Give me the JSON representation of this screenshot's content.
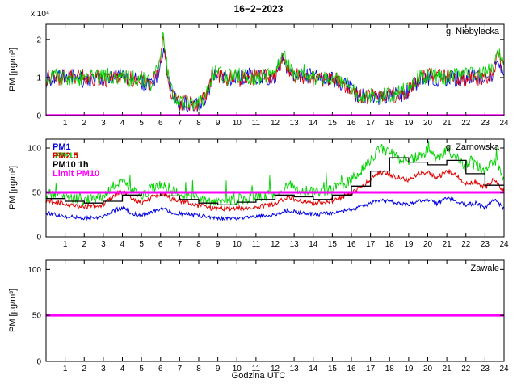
{
  "figure": {
    "title": "16−2−2023",
    "xlabel": "Godzina UTC"
  },
  "colors": {
    "pm1_blue": "#0000e0",
    "pm25_red": "#e00000",
    "pm10_green": "#00d200",
    "pm10_1h_black": "#000000",
    "limit_magenta": "#ff00ff"
  },
  "chart_data": [
    {
      "type": "line",
      "station": "g. Niebylecka",
      "ylabel": "PM [µg/m³]",
      "y_scale_label": "x 10⁴",
      "y_scale_factor": 10000,
      "xlim": [
        0,
        24
      ],
      "ylim": [
        0,
        2.4
      ],
      "xticks": [
        1,
        2,
        3,
        4,
        5,
        6,
        7,
        8,
        9,
        10,
        11,
        12,
        13,
        14,
        15,
        16,
        17,
        18,
        19,
        20,
        21,
        22,
        23,
        24
      ],
      "yticks": [
        0,
        1,
        2
      ],
      "grid": false,
      "series": [
        {
          "name": "PM1",
          "color": "#0000e0",
          "style": "noisy",
          "width": 0.8,
          "noise": 0.22,
          "seed": 7,
          "x": [
            0,
            0.5,
            1,
            2,
            3,
            4,
            5,
            5.5,
            5.9,
            6.15,
            6.3,
            6.6,
            7,
            7.5,
            8,
            8.4,
            8.7,
            9,
            9.5,
            10,
            11,
            12,
            12.4,
            12.6,
            13,
            13.5,
            14,
            15,
            15.7,
            16.2,
            16.6,
            17,
            17.5,
            18,
            18.5,
            19,
            19.5,
            20,
            21,
            22,
            23,
            23.4,
            23.7,
            24
          ],
          "y": [
            0.95,
            1.0,
            1.05,
            0.95,
            1.0,
            1.05,
            0.9,
            0.8,
            1.1,
            1.9,
            1.3,
            0.6,
            0.35,
            0.3,
            0.3,
            0.4,
            1.0,
            1.1,
            0.95,
            1.0,
            1.05,
            1.0,
            1.6,
            1.3,
            1.0,
            1.1,
            1.0,
            0.95,
            0.85,
            0.6,
            0.5,
            0.45,
            0.5,
            0.5,
            0.55,
            0.65,
            0.9,
            1.0,
            0.95,
            1.0,
            1.05,
            1.1,
            1.5,
            1.1
          ]
        },
        {
          "name": "PM2.5",
          "color": "#e00000",
          "style": "noisy",
          "width": 0.8,
          "noise": 0.22,
          "seed": 11,
          "x": [
            0,
            0.5,
            1,
            2,
            3,
            4,
            5,
            5.5,
            5.9,
            6.15,
            6.3,
            6.6,
            7,
            7.5,
            8,
            8.4,
            8.7,
            9,
            9.5,
            10,
            11,
            12,
            12.4,
            12.6,
            13,
            13.5,
            14,
            15,
            15.7,
            16.2,
            16.6,
            17,
            17.5,
            18,
            18.5,
            19,
            19.5,
            20,
            21,
            22,
            23,
            23.4,
            23.7,
            24
          ],
          "y": [
            1.0,
            0.95,
            1.0,
            1.05,
            0.95,
            1.0,
            0.95,
            0.85,
            1.2,
            2.0,
            1.2,
            0.55,
            0.35,
            0.3,
            0.32,
            0.45,
            1.05,
            1.05,
            1.0,
            0.95,
            1.0,
            1.05,
            1.5,
            1.25,
            1.05,
            1.0,
            0.95,
            1.0,
            0.8,
            0.55,
            0.5,
            0.5,
            0.45,
            0.55,
            0.5,
            0.7,
            0.95,
            1.05,
            1.0,
            0.95,
            1.0,
            1.15,
            1.6,
            1.2
          ]
        },
        {
          "name": "PM10",
          "color": "#00d200",
          "style": "noisy",
          "width": 0.8,
          "noise": 0.22,
          "seed": 13,
          "x": [
            0,
            0.5,
            1,
            2,
            3,
            4,
            5,
            5.5,
            5.9,
            6.15,
            6.3,
            6.6,
            7,
            7.5,
            8,
            8.4,
            8.7,
            9,
            9.5,
            10,
            11,
            12,
            12.4,
            12.6,
            13,
            13.5,
            14,
            15,
            15.7,
            16.2,
            16.6,
            17,
            17.5,
            18,
            18.5,
            19,
            19.5,
            20,
            21,
            22,
            23,
            23.4,
            23.7,
            24
          ],
          "y": [
            1.0,
            1.05,
            0.95,
            1.0,
            1.05,
            1.0,
            0.95,
            0.85,
            1.3,
            2.1,
            1.4,
            0.6,
            0.35,
            0.3,
            0.32,
            0.5,
            1.1,
            1.15,
            1.0,
            1.05,
            1.0,
            1.05,
            1.7,
            1.35,
            1.05,
            1.15,
            1.0,
            1.0,
            0.9,
            0.6,
            0.5,
            0.5,
            0.5,
            0.55,
            0.6,
            0.7,
            1.0,
            1.05,
            1.0,
            1.05,
            1.1,
            1.2,
            1.7,
            1.25
          ]
        }
      ],
      "limit": {
        "label": "Limit PM10",
        "value": 0.005,
        "color": "#ff00ff"
      }
    },
    {
      "type": "line",
      "station": "g. Zarnowska",
      "ylabel": "PM [µg/m³]",
      "xlim": [
        0,
        24
      ],
      "ylim": [
        0,
        110
      ],
      "xticks": [
        1,
        2,
        3,
        4,
        5,
        6,
        7,
        8,
        9,
        10,
        11,
        12,
        13,
        14,
        15,
        16,
        17,
        18,
        19,
        20,
        21,
        22,
        23,
        24
      ],
      "yticks": [
        0,
        50,
        100
      ],
      "grid": false,
      "legend": [
        {
          "label": "PM1",
          "color": "#0000e0",
          "row": 0,
          "dx": 0
        },
        {
          "label": "PM10",
          "color": "#00d200",
          "row": 1,
          "dx": 3
        },
        {
          "label": "PM2.5",
          "color": "#e00000",
          "row": 1,
          "dx": 0
        },
        {
          "label": "PM10 1h",
          "color": "#000000",
          "row": 2,
          "dx": 0
        },
        {
          "label": "Limit PM10",
          "color": "#ff00ff",
          "row": 3,
          "dx": 0
        }
      ],
      "series": [
        {
          "name": "PM10",
          "color": "#00d200",
          "style": "noisy",
          "width": 0.9,
          "noise": 6,
          "spike_chance": 0.05,
          "spike_amp": 20,
          "seed": 23,
          "x": [
            0,
            0.5,
            1,
            2,
            3,
            3.7,
            4.1,
            4.5,
            5,
            5.7,
            6.2,
            6.6,
            7,
            8,
            9,
            10,
            11,
            12,
            12.7,
            13.2,
            14,
            15,
            15.5,
            16,
            16.5,
            17,
            17.5,
            18,
            18.5,
            19,
            19.5,
            20,
            20.5,
            21,
            21.5,
            22,
            22.5,
            23,
            23.5,
            24
          ],
          "y": [
            49,
            47,
            45,
            42,
            45,
            61,
            64,
            52,
            47,
            56,
            59,
            52,
            49,
            44,
            40,
            42,
            44,
            48,
            59,
            54,
            50,
            53,
            58,
            64,
            74,
            86,
            100,
            95,
            88,
            85,
            92,
            96,
            87,
            98,
            90,
            79,
            82,
            73,
            89,
            64
          ]
        },
        {
          "name": "PM2.5",
          "color": "#e00000",
          "style": "noisy",
          "width": 1,
          "noise": 2.8,
          "seed": 22,
          "x": [
            0,
            0.5,
            1,
            2,
            3,
            3.7,
            4.1,
            4.5,
            5,
            5.7,
            6.2,
            6.6,
            7,
            8,
            9,
            10,
            11,
            12,
            12.7,
            13.2,
            14,
            15,
            15.5,
            16,
            16.5,
            17,
            17.5,
            18,
            18.5,
            19,
            19.5,
            20,
            20.5,
            21,
            21.5,
            22,
            22.5,
            23,
            23.5,
            24
          ],
          "y": [
            41,
            39,
            37,
            34,
            36,
            49,
            52,
            42,
            38,
            46,
            48,
            42,
            40,
            35,
            31,
            32,
            34,
            37,
            45,
            41,
            38,
            41,
            45,
            49,
            56,
            64,
            73,
            70,
            66,
            64,
            70,
            73,
            66,
            75,
            69,
            60,
            62,
            55,
            65,
            51
          ]
        },
        {
          "name": "PM1",
          "color": "#0000e0",
          "style": "noisy",
          "width": 1,
          "noise": 2.2,
          "seed": 21,
          "x": [
            0,
            0.5,
            1,
            2,
            3,
            3.7,
            4.1,
            4.5,
            5,
            5.7,
            6.2,
            6.6,
            7,
            8,
            9,
            10,
            11,
            12,
            12.7,
            13.2,
            14,
            15,
            15.5,
            16,
            16.5,
            17,
            17.5,
            18,
            18.5,
            19,
            19.5,
            20,
            20.5,
            21,
            21.5,
            22,
            22.5,
            23,
            23.5,
            24
          ],
          "y": [
            27,
            25,
            23,
            21,
            22,
            31,
            33,
            26,
            24,
            30,
            32,
            27,
            26,
            24,
            21,
            21,
            23,
            25,
            30,
            27,
            25,
            27,
            29,
            31,
            34,
            38,
            42,
            40,
            37,
            36,
            40,
            42,
            37,
            44,
            40,
            36,
            38,
            33,
            42,
            31
          ]
        },
        {
          "name": "PM10 1h",
          "color": "#000000",
          "style": "step",
          "width": 1.3,
          "values": [
            43,
            40,
            38,
            40,
            47,
            50,
            46,
            42,
            38,
            36,
            39,
            42,
            47,
            45,
            42,
            47,
            57,
            74,
            89,
            84,
            81,
            86,
            71,
            58
          ]
        }
      ],
      "limit": {
        "label": "Limit PM10",
        "value": 50,
        "color": "#ff00ff"
      }
    },
    {
      "type": "line",
      "station": "Zawale",
      "ylabel": "PM [µg/m³]",
      "xlim": [
        0,
        24
      ],
      "ylim": [
        0,
        110
      ],
      "xticks": [
        1,
        2,
        3,
        4,
        5,
        6,
        7,
        8,
        9,
        10,
        11,
        12,
        13,
        14,
        15,
        16,
        17,
        18,
        19,
        20,
        21,
        22,
        23,
        24
      ],
      "yticks": [
        0,
        50,
        100
      ],
      "grid": false,
      "series": [],
      "limit": {
        "label": "Limit PM10",
        "value": 50,
        "color": "#ff00ff"
      }
    }
  ]
}
